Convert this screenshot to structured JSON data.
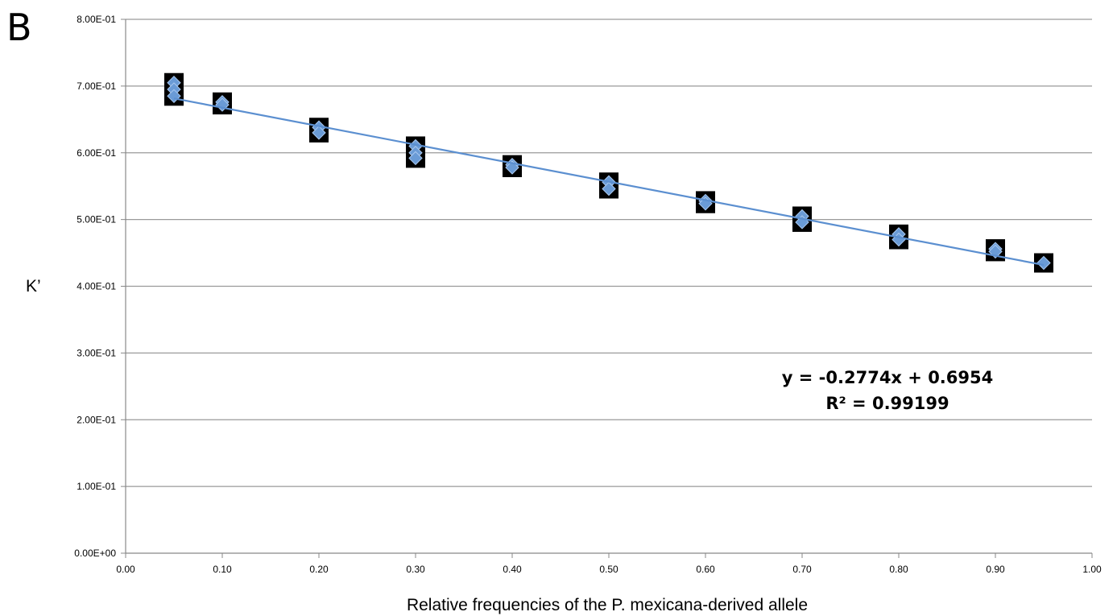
{
  "panel_label": "B",
  "chart_data": {
    "type": "scatter",
    "xlabel": "Relative frequencies of the P. mexicana-derived allele",
    "ylabel": "K’",
    "xlim": [
      0,
      1
    ],
    "ylim": [
      0,
      0.8
    ],
    "x_ticks": [
      "0.00",
      "0.10",
      "0.20",
      "0.30",
      "0.40",
      "0.50",
      "0.60",
      "0.70",
      "0.80",
      "0.90",
      "1.00"
    ],
    "y_ticks": [
      "0.00E+00",
      "1.00E-01",
      "2.00E-01",
      "3.00E-01",
      "4.00E-01",
      "5.00E-01",
      "6.00E-01",
      "7.00E-01",
      "8.00E-01"
    ],
    "grid": "horizontal",
    "marker_color": "#6a9bd6",
    "marker_border_color": "#000000",
    "trendline_color": "#5b8fd0",
    "points": [
      {
        "x": 0.05,
        "y": 0.705
      },
      {
        "x": 0.05,
        "y": 0.695
      },
      {
        "x": 0.05,
        "y": 0.685
      },
      {
        "x": 0.1,
        "y": 0.676
      },
      {
        "x": 0.1,
        "y": 0.672
      },
      {
        "x": 0.2,
        "y": 0.638
      },
      {
        "x": 0.2,
        "y": 0.63
      },
      {
        "x": 0.3,
        "y": 0.61
      },
      {
        "x": 0.3,
        "y": 0.6
      },
      {
        "x": 0.3,
        "y": 0.592
      },
      {
        "x": 0.4,
        "y": 0.582
      },
      {
        "x": 0.4,
        "y": 0.578
      },
      {
        "x": 0.5,
        "y": 0.556
      },
      {
        "x": 0.5,
        "y": 0.546
      },
      {
        "x": 0.6,
        "y": 0.528
      },
      {
        "x": 0.6,
        "y": 0.524
      },
      {
        "x": 0.7,
        "y": 0.505
      },
      {
        "x": 0.7,
        "y": 0.496
      },
      {
        "x": 0.8,
        "y": 0.478
      },
      {
        "x": 0.8,
        "y": 0.47
      },
      {
        "x": 0.9,
        "y": 0.456
      },
      {
        "x": 0.9,
        "y": 0.452
      },
      {
        "x": 0.95,
        "y": 0.435
      }
    ],
    "trendline": {
      "slope": -0.2774,
      "intercept": 0.6954,
      "x_range": [
        0.05,
        0.95
      ],
      "equation": "y = -0.2774x + 0.6954",
      "r_squared": "R² = 0.99199"
    }
  }
}
